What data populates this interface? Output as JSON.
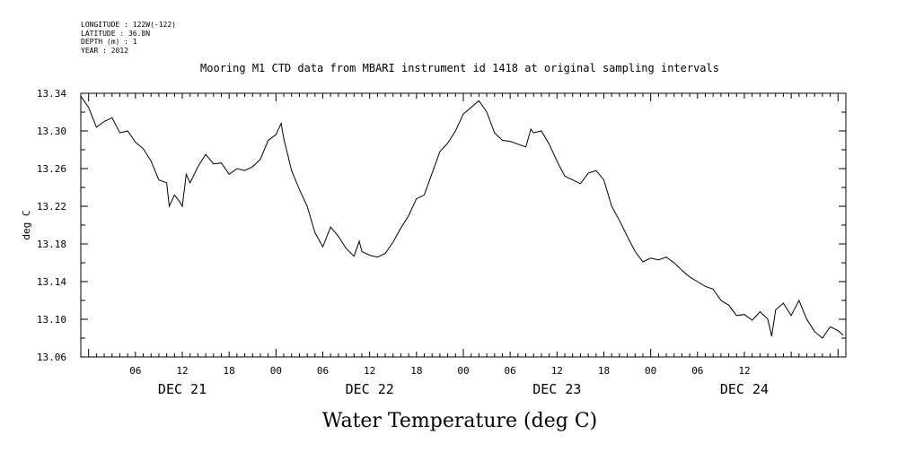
{
  "metadata": {
    "longitude": "LONGITUDE : 122W(-122)",
    "latitude": "LATITUDE : 36.8N",
    "depth": "DEPTH (m) : 1",
    "year": "YEAR : 2012"
  },
  "footer_title": "Water Temperature (deg C)",
  "chart_data": {
    "type": "line",
    "title": "Mooring M1 CTD data from MBARI instrument id 1418 at original sampling intervals",
    "ylabel": "deg C",
    "xlabel": "",
    "ylim": [
      13.06,
      13.34
    ],
    "xlim": [
      "2012-12-20T23:00",
      "2012-12-25T01:00"
    ],
    "yticks": [
      "13.06",
      "13.10",
      "13.14",
      "13.18",
      "13.22",
      "13.26",
      "13.30",
      "13.34"
    ],
    "xtick_labels": [
      {
        "time": "2012-12-21T06:00",
        "label": "06"
      },
      {
        "time": "2012-12-21T12:00",
        "label": "12"
      },
      {
        "time": "2012-12-21T18:00",
        "label": "18"
      },
      {
        "time": "2012-12-22T00:00",
        "label": "00"
      },
      {
        "time": "2012-12-22T06:00",
        "label": "06"
      },
      {
        "time": "2012-12-22T12:00",
        "label": "12"
      },
      {
        "time": "2012-12-22T18:00",
        "label": "18"
      },
      {
        "time": "2012-12-23T00:00",
        "label": "00"
      },
      {
        "time": "2012-12-23T06:00",
        "label": "06"
      },
      {
        "time": "2012-12-23T12:00",
        "label": "12"
      },
      {
        "time": "2012-12-23T18:00",
        "label": "18"
      },
      {
        "time": "2012-12-24T00:00",
        "label": "00"
      },
      {
        "time": "2012-12-24T06:00",
        "label": "06"
      },
      {
        "time": "2012-12-24T12:00",
        "label": "12"
      }
    ],
    "day_labels": [
      {
        "time": "2012-12-21T12:00",
        "label": "DEC 21"
      },
      {
        "time": "2012-12-22T12:00",
        "label": "DEC 22"
      },
      {
        "time": "2012-12-23T12:00",
        "label": "DEC 23"
      },
      {
        "time": "2012-12-24T12:00",
        "label": "DEC 24"
      }
    ],
    "grid": false,
    "series": [
      {
        "points": [
          [
            "2012-12-20T23:00",
            13.337
          ],
          [
            "2012-12-21T00:00",
            13.325
          ],
          [
            "2012-12-21T01:00",
            13.304
          ],
          [
            "2012-12-21T02:00",
            13.31
          ],
          [
            "2012-12-21T03:00",
            13.314
          ],
          [
            "2012-12-21T04:00",
            13.298
          ],
          [
            "2012-12-21T05:00",
            13.3
          ],
          [
            "2012-12-21T06:00",
            13.288
          ],
          [
            "2012-12-21T07:00",
            13.281
          ],
          [
            "2012-12-21T08:00",
            13.268
          ],
          [
            "2012-12-21T09:00",
            13.248
          ],
          [
            "2012-12-21T10:00",
            13.245
          ],
          [
            "2012-12-21T10:20",
            13.22
          ],
          [
            "2012-12-21T11:00",
            13.232
          ],
          [
            "2012-12-21T11:40",
            13.225
          ],
          [
            "2012-12-21T12:00",
            13.22
          ],
          [
            "2012-12-21T12:30",
            13.254
          ],
          [
            "2012-12-21T13:00",
            13.245
          ],
          [
            "2012-12-21T14:00",
            13.262
          ],
          [
            "2012-12-21T15:00",
            13.275
          ],
          [
            "2012-12-21T16:00",
            13.265
          ],
          [
            "2012-12-21T17:00",
            13.266
          ],
          [
            "2012-12-21T18:00",
            13.254
          ],
          [
            "2012-12-21T19:00",
            13.26
          ],
          [
            "2012-12-21T20:00",
            13.258
          ],
          [
            "2012-12-21T21:00",
            13.262
          ],
          [
            "2012-12-21T22:00",
            13.27
          ],
          [
            "2012-12-21T23:00",
            13.29
          ],
          [
            "2012-12-22T00:00",
            13.296
          ],
          [
            "2012-12-22T00:40",
            13.308
          ],
          [
            "2012-12-22T01:00",
            13.292
          ],
          [
            "2012-12-22T02:00",
            13.258
          ],
          [
            "2012-12-22T03:00",
            13.238
          ],
          [
            "2012-12-22T04:00",
            13.22
          ],
          [
            "2012-12-22T05:00",
            13.192
          ],
          [
            "2012-12-22T06:00",
            13.177
          ],
          [
            "2012-12-22T07:00",
            13.198
          ],
          [
            "2012-12-22T08:00",
            13.188
          ],
          [
            "2012-12-22T09:00",
            13.175
          ],
          [
            "2012-12-22T10:00",
            13.167
          ],
          [
            "2012-12-22T10:40",
            13.183
          ],
          [
            "2012-12-22T11:00",
            13.172
          ],
          [
            "2012-12-22T12:00",
            13.168
          ],
          [
            "2012-12-22T13:00",
            13.166
          ],
          [
            "2012-12-22T14:00",
            13.17
          ],
          [
            "2012-12-22T15:00",
            13.182
          ],
          [
            "2012-12-22T16:00",
            13.197
          ],
          [
            "2012-12-22T17:00",
            13.21
          ],
          [
            "2012-12-22T18:00",
            13.228
          ],
          [
            "2012-12-22T19:00",
            13.232
          ],
          [
            "2012-12-22T20:00",
            13.255
          ],
          [
            "2012-12-22T21:00",
            13.278
          ],
          [
            "2012-12-22T22:00",
            13.287
          ],
          [
            "2012-12-22T23:00",
            13.3
          ],
          [
            "2012-12-23T00:00",
            13.318
          ],
          [
            "2012-12-23T01:00",
            13.325
          ],
          [
            "2012-12-23T02:00",
            13.332
          ],
          [
            "2012-12-23T03:00",
            13.32
          ],
          [
            "2012-12-23T04:00",
            13.298
          ],
          [
            "2012-12-23T05:00",
            13.29
          ],
          [
            "2012-12-23T06:00",
            13.289
          ],
          [
            "2012-12-23T07:00",
            13.286
          ],
          [
            "2012-12-23T08:00",
            13.283
          ],
          [
            "2012-12-23T08:40",
            13.302
          ],
          [
            "2012-12-23T09:00",
            13.298
          ],
          [
            "2012-12-23T10:00",
            13.3
          ],
          [
            "2012-12-23T11:00",
            13.286
          ],
          [
            "2012-12-23T12:00",
            13.268
          ],
          [
            "2012-12-23T13:00",
            13.252
          ],
          [
            "2012-12-23T14:00",
            13.248
          ],
          [
            "2012-12-23T15:00",
            13.244
          ],
          [
            "2012-12-23T16:00",
            13.255
          ],
          [
            "2012-12-23T17:00",
            13.258
          ],
          [
            "2012-12-23T18:00",
            13.248
          ],
          [
            "2012-12-23T19:00",
            13.22
          ],
          [
            "2012-12-23T20:00",
            13.205
          ],
          [
            "2012-12-23T21:00",
            13.188
          ],
          [
            "2012-12-23T22:00",
            13.172
          ],
          [
            "2012-12-23T23:00",
            13.161
          ],
          [
            "2012-12-24T00:00",
            13.165
          ],
          [
            "2012-12-24T01:00",
            13.163
          ],
          [
            "2012-12-24T02:00",
            13.166
          ],
          [
            "2012-12-24T03:00",
            13.16
          ],
          [
            "2012-12-24T04:00",
            13.152
          ],
          [
            "2012-12-24T05:00",
            13.145
          ],
          [
            "2012-12-24T06:00",
            13.14
          ],
          [
            "2012-12-24T07:00",
            13.135
          ],
          [
            "2012-12-24T08:00",
            13.132
          ],
          [
            "2012-12-24T09:00",
            13.12
          ],
          [
            "2012-12-24T10:00",
            13.115
          ],
          [
            "2012-12-24T11:00",
            13.104
          ],
          [
            "2012-12-24T12:00",
            13.105
          ],
          [
            "2012-12-24T13:00",
            13.099
          ],
          [
            "2012-12-24T14:00",
            13.108
          ],
          [
            "2012-12-24T15:00",
            13.1
          ],
          [
            "2012-12-24T15:30",
            13.082
          ],
          [
            "2012-12-24T16:00",
            13.11
          ],
          [
            "2012-12-24T17:00",
            13.117
          ],
          [
            "2012-12-24T18:00",
            13.104
          ],
          [
            "2012-12-24T19:00",
            13.12
          ],
          [
            "2012-12-24T20:00",
            13.1
          ],
          [
            "2012-12-24T21:00",
            13.087
          ],
          [
            "2012-12-24T22:00",
            13.08
          ],
          [
            "2012-12-24T23:00",
            13.092
          ],
          [
            "2012-12-25T00:00",
            13.088
          ],
          [
            "2012-12-25T00:40",
            13.083
          ]
        ]
      }
    ]
  }
}
